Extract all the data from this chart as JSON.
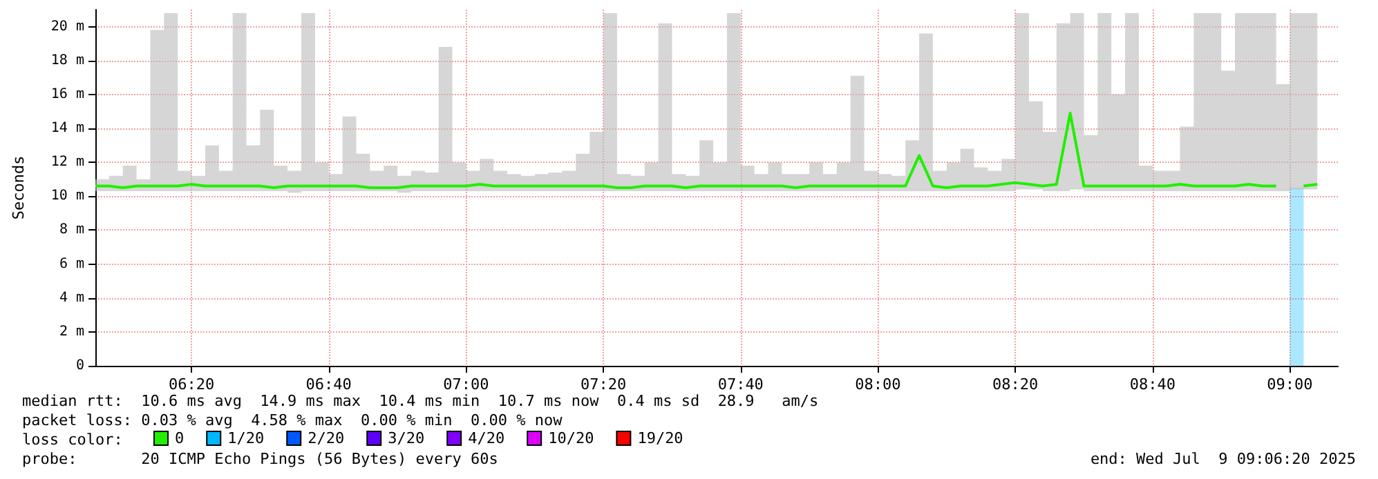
{
  "chart_data": {
    "type": "line",
    "ylabel": "Seconds",
    "x": [
      "2025-07-09T06:06",
      "2025-07-09T06:08",
      "2025-07-09T06:10",
      "2025-07-09T06:12",
      "2025-07-09T06:14",
      "2025-07-09T06:16",
      "2025-07-09T06:18",
      "2025-07-09T06:20",
      "2025-07-09T06:22",
      "2025-07-09T06:24",
      "2025-07-09T06:26",
      "2025-07-09T06:28",
      "2025-07-09T06:30",
      "2025-07-09T06:32",
      "2025-07-09T06:34",
      "2025-07-09T06:36",
      "2025-07-09T06:38",
      "2025-07-09T06:40",
      "2025-07-09T06:42",
      "2025-07-09T06:44",
      "2025-07-09T06:46",
      "2025-07-09T06:48",
      "2025-07-09T06:50",
      "2025-07-09T06:52",
      "2025-07-09T06:54",
      "2025-07-09T06:56",
      "2025-07-09T06:58",
      "2025-07-09T07:00",
      "2025-07-09T07:02",
      "2025-07-09T07:04",
      "2025-07-09T07:06",
      "2025-07-09T07:08",
      "2025-07-09T07:10",
      "2025-07-09T07:12",
      "2025-07-09T07:14",
      "2025-07-09T07:16",
      "2025-07-09T07:18",
      "2025-07-09T07:20",
      "2025-07-09T07:22",
      "2025-07-09T07:24",
      "2025-07-09T07:26",
      "2025-07-09T07:28",
      "2025-07-09T07:30",
      "2025-07-09T07:32",
      "2025-07-09T07:34",
      "2025-07-09T07:36",
      "2025-07-09T07:38",
      "2025-07-09T07:40",
      "2025-07-09T07:42",
      "2025-07-09T07:44",
      "2025-07-09T07:46",
      "2025-07-09T07:48",
      "2025-07-09T07:50",
      "2025-07-09T07:52",
      "2025-07-09T07:54",
      "2025-07-09T07:56",
      "2025-07-09T07:58",
      "2025-07-09T08:00",
      "2025-07-09T08:02",
      "2025-07-09T08:04",
      "2025-07-09T08:06",
      "2025-07-09T08:08",
      "2025-07-09T08:10",
      "2025-07-09T08:12",
      "2025-07-09T08:14",
      "2025-07-09T08:16",
      "2025-07-09T08:18",
      "2025-07-09T08:20",
      "2025-07-09T08:22",
      "2025-07-09T08:24",
      "2025-07-09T08:26",
      "2025-07-09T08:28",
      "2025-07-09T08:30",
      "2025-07-09T08:32",
      "2025-07-09T08:34",
      "2025-07-09T08:36",
      "2025-07-09T08:38",
      "2025-07-09T08:40",
      "2025-07-09T08:42",
      "2025-07-09T08:44",
      "2025-07-09T08:46",
      "2025-07-09T08:48",
      "2025-07-09T08:50",
      "2025-07-09T08:52",
      "2025-07-09T08:54",
      "2025-07-09T08:56",
      "2025-07-09T08:58",
      "2025-07-09T09:00",
      "2025-07-09T09:02",
      "2025-07-09T09:04"
    ],
    "series": [
      {
        "name": "0",
        "color": "#22ee00",
        "values": [
          10.6,
          10.6,
          10.5,
          10.6,
          10.6,
          10.6,
          10.6,
          10.7,
          10.6,
          10.6,
          10.6,
          10.6,
          10.6,
          10.5,
          10.6,
          10.6,
          10.6,
          10.6,
          10.6,
          10.6,
          10.5,
          10.5,
          10.5,
          10.6,
          10.6,
          10.6,
          10.6,
          10.6,
          10.7,
          10.6,
          10.6,
          10.6,
          10.6,
          10.6,
          10.6,
          10.6,
          10.6,
          10.6,
          10.5,
          10.5,
          10.6,
          10.6,
          10.6,
          10.5,
          10.6,
          10.6,
          10.6,
          10.6,
          10.6,
          10.6,
          10.6,
          10.5,
          10.6,
          10.6,
          10.6,
          10.6,
          10.6,
          10.6,
          10.6,
          10.6,
          12.4,
          10.6,
          10.5,
          10.6,
          10.6,
          10.6,
          10.7,
          10.8,
          10.7,
          10.6,
          10.7,
          14.9,
          10.6,
          10.6,
          10.6,
          10.6,
          10.6,
          10.6,
          10.6,
          10.7,
          10.6,
          10.6,
          10.6,
          10.6,
          10.7,
          10.6,
          10.6,
          null,
          10.6,
          10.7
        ],
        "lower": [
          10.3,
          10.3,
          10.3,
          10.3,
          10.3,
          10.3,
          10.3,
          10.3,
          10.3,
          10.3,
          10.3,
          10.3,
          10.3,
          10.3,
          10.2,
          10.3,
          10.3,
          10.3,
          10.3,
          10.3,
          10.3,
          10.3,
          10.2,
          10.3,
          10.3,
          10.3,
          10.3,
          10.3,
          10.3,
          10.3,
          10.3,
          10.3,
          10.3,
          10.3,
          10.3,
          10.3,
          10.3,
          10.3,
          10.3,
          10.3,
          10.3,
          10.3,
          10.3,
          10.3,
          10.3,
          10.3,
          10.3,
          10.3,
          10.3,
          10.3,
          10.3,
          10.3,
          10.3,
          10.3,
          10.3,
          10.3,
          10.3,
          10.3,
          10.3,
          10.3,
          10.3,
          10.3,
          10.3,
          10.3,
          10.3,
          10.3,
          10.3,
          10.4,
          10.4,
          10.3,
          10.3,
          10.4,
          10.3,
          10.3,
          10.3,
          10.3,
          10.3,
          10.3,
          10.3,
          10.3,
          10.3,
          10.3,
          10.3,
          10.3,
          10.3,
          10.3,
          10.3,
          10.4,
          10.4,
          10.4
        ],
        "upper": [
          11.0,
          11.2,
          11.8,
          11.0,
          19.8,
          20.8,
          11.5,
          11.2,
          13.0,
          11.5,
          20.8,
          13.0,
          15.1,
          11.8,
          11.5,
          20.8,
          12.0,
          11.3,
          14.7,
          12.5,
          11.5,
          11.8,
          11.2,
          11.5,
          11.4,
          18.8,
          12.0,
          11.5,
          12.2,
          11.5,
          11.3,
          11.2,
          11.3,
          11.4,
          11.5,
          12.5,
          13.8,
          20.8,
          11.3,
          11.2,
          12.0,
          20.2,
          11.3,
          11.2,
          13.3,
          12.0,
          20.8,
          11.8,
          11.3,
          12.0,
          11.3,
          11.3,
          12.0,
          11.3,
          12.0,
          17.1,
          11.5,
          11.3,
          11.2,
          13.3,
          19.6,
          11.5,
          12.0,
          12.8,
          11.7,
          11.5,
          12.2,
          20.8,
          15.6,
          13.8,
          20.2,
          20.8,
          13.6,
          20.8,
          16.0,
          20.8,
          11.8,
          11.5,
          11.5,
          14.1,
          20.8,
          20.8,
          17.4,
          20.8,
          20.8,
          20.8,
          16.6,
          20.8,
          20.8,
          19.6
        ]
      },
      {
        "name": "1/20",
        "color": "#00b8ff",
        "type": "bar",
        "x": [
          "2025-07-09T09:01"
        ],
        "values": [
          10.5
        ]
      },
      {
        "name": "2/20",
        "color": "#0059ff",
        "values": [
          null,
          null,
          null,
          null,
          null,
          null,
          null,
          null,
          null,
          null,
          null,
          null,
          null,
          null,
          null,
          null,
          null,
          null,
          null,
          null,
          null,
          null,
          null,
          null,
          null,
          null,
          null,
          null,
          null,
          null,
          null,
          null,
          null,
          null,
          null,
          null,
          null,
          null,
          null,
          null,
          null,
          null,
          null,
          null,
          null,
          null,
          null,
          null,
          null,
          null,
          null,
          null,
          null,
          null,
          null,
          null,
          null,
          null,
          null,
          null,
          null,
          null,
          null,
          null,
          null,
          null,
          null,
          null,
          null,
          null,
          null,
          null,
          null,
          null,
          null,
          null,
          null,
          null,
          null,
          null,
          null,
          null,
          null,
          null,
          null,
          null,
          null,
          null,
          null,
          null
        ]
      },
      {
        "name": "3/20",
        "color": "#5e00ff",
        "values": [
          null,
          null,
          null,
          null,
          null,
          null,
          null,
          null,
          null,
          null,
          null,
          null,
          null,
          null,
          null,
          null,
          null,
          null,
          null,
          null,
          null,
          null,
          null,
          null,
          null,
          null,
          null,
          null,
          null,
          null,
          null,
          null,
          null,
          null,
          null,
          null,
          null,
          null,
          null,
          null,
          null,
          null,
          null,
          null,
          null,
          null,
          null,
          null,
          null,
          null,
          null,
          null,
          null,
          null,
          null,
          null,
          null,
          null,
          null,
          null,
          null,
          null,
          null,
          null,
          null,
          null,
          null,
          null,
          null,
          null,
          null,
          null,
          null,
          null,
          null,
          null,
          null,
          null,
          null,
          null,
          null,
          null,
          null,
          null,
          null,
          null,
          null,
          null,
          null,
          null
        ]
      },
      {
        "name": "4/20",
        "color": "#7e00ff",
        "values": [
          null,
          null,
          null,
          null,
          null,
          null,
          null,
          null,
          null,
          null,
          null,
          null,
          null,
          null,
          null,
          null,
          null,
          null,
          null,
          null,
          null,
          null,
          null,
          null,
          null,
          null,
          null,
          null,
          null,
          null,
          null,
          null,
          null,
          null,
          null,
          null,
          null,
          null,
          null,
          null,
          null,
          null,
          null,
          null,
          null,
          null,
          null,
          null,
          null,
          null,
          null,
          null,
          null,
          null,
          null,
          null,
          null,
          null,
          null,
          null,
          null,
          null,
          null,
          null,
          null,
          null,
          null,
          null,
          null,
          null,
          null,
          null,
          null,
          null,
          null,
          null,
          null,
          null,
          null,
          null,
          null,
          null,
          null,
          null,
          null,
          null,
          null,
          null,
          null,
          null
        ]
      },
      {
        "name": "10/20",
        "color": "#dd00ff",
        "values": [
          null,
          null,
          null,
          null,
          null,
          null,
          null,
          null,
          null,
          null,
          null,
          null,
          null,
          null,
          null,
          null,
          null,
          null,
          null,
          null,
          null,
          null,
          null,
          null,
          null,
          null,
          null,
          null,
          null,
          null,
          null,
          null,
          null,
          null,
          null,
          null,
          null,
          null,
          null,
          null,
          null,
          null,
          null,
          null,
          null,
          null,
          null,
          null,
          null,
          null,
          null,
          null,
          null,
          null,
          null,
          null,
          null,
          null,
          null,
          null,
          null,
          null,
          null,
          null,
          null,
          null,
          null,
          null,
          null,
          null,
          null,
          null,
          null,
          null,
          null,
          null,
          null,
          null,
          null,
          null,
          null,
          null,
          null,
          null,
          null,
          null,
          null,
          null,
          null,
          null
        ]
      },
      {
        "name": "19/20",
        "color": "#ff0000",
        "values": [
          null,
          null,
          null,
          null,
          null,
          null,
          null,
          null,
          null,
          null,
          null,
          null,
          null,
          null,
          null,
          null,
          null,
          null,
          null,
          null,
          null,
          null,
          null,
          null,
          null,
          null,
          null,
          null,
          null,
          null,
          null,
          null,
          null,
          null,
          null,
          null,
          null,
          null,
          null,
          null,
          null,
          null,
          null,
          null,
          null,
          null,
          null,
          null,
          null,
          null,
          null,
          null,
          null,
          null,
          null,
          null,
          null,
          null,
          null,
          null,
          null,
          null,
          null,
          null,
          null,
          null,
          null,
          null,
          null,
          null,
          null,
          null,
          null,
          null,
          null,
          null,
          null,
          null,
          null,
          null,
          null,
          null,
          null,
          null,
          null,
          null,
          null,
          null,
          null,
          null
        ]
      }
    ],
    "xlim": [
      "2025-07-09T06:06",
      "2025-07-09T09:07"
    ],
    "xticks": [
      {
        "value": "2025-07-09T06:20",
        "label": "06:20"
      },
      {
        "value": "2025-07-09T06:40",
        "label": "06:40"
      },
      {
        "value": "2025-07-09T07:00",
        "label": "07:00"
      },
      {
        "value": "2025-07-09T07:20",
        "label": "07:20"
      },
      {
        "value": "2025-07-09T07:40",
        "label": "07:40"
      },
      {
        "value": "2025-07-09T08:00",
        "label": "08:00"
      },
      {
        "value": "2025-07-09T08:20",
        "label": "08:20"
      },
      {
        "value": "2025-07-09T08:40",
        "label": "08:40"
      },
      {
        "value": "2025-07-09T09:00",
        "label": "09:00"
      }
    ],
    "ylim": [
      0,
      21
    ],
    "yticks": [
      {
        "value": 0,
        "label": "0"
      },
      {
        "value": 2,
        "label": "2 m"
      },
      {
        "value": 4,
        "label": "4 m"
      },
      {
        "value": 6,
        "label": "6 m"
      },
      {
        "value": 8,
        "label": "8 m"
      },
      {
        "value": 10,
        "label": "10 m"
      },
      {
        "value": 12,
        "label": "12 m"
      },
      {
        "value": 14,
        "label": "14 m"
      },
      {
        "value": 16,
        "label": "16 m"
      },
      {
        "value": 18,
        "label": "18 m"
      },
      {
        "value": 20,
        "label": "20 m"
      }
    ],
    "grid": true,
    "legend": "bottom left",
    "annotations": [
      "median rtt:  10.6 ms avg  14.9 ms max  10.4 ms min  10.7 ms now  0.4 ms sd  28.9   am/s",
      "packet loss: 0.03 % avg  4.58 % max  0.00 % min  0.00 % now",
      "loss color:",
      "probe:       20 ICMP Echo Pings (56 Bytes) every 60s",
      "end: Wed Jul  9 09:06:20 2025"
    ]
  }
}
